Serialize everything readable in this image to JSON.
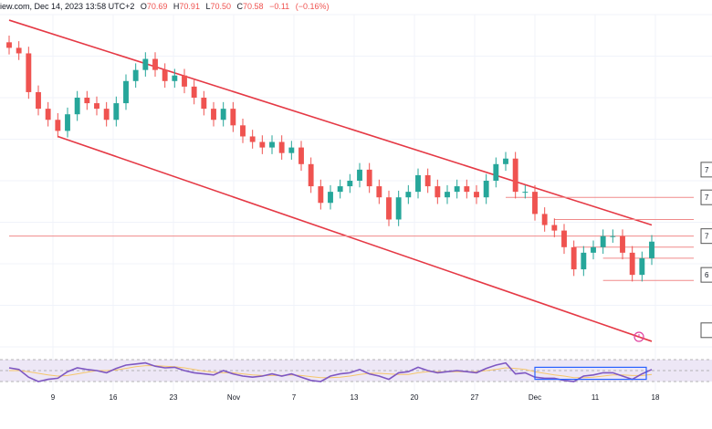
{
  "header": {
    "source": "iew.com, Dec 14, 2023 13:58 UTC+2",
    "open_label": "O",
    "open": "70.69",
    "high_label": "H",
    "high": "70.91",
    "low_label": "L",
    "low": "70.50",
    "close_label": "C",
    "close": "70.58",
    "change": "−0.11",
    "change_pct": "(−0.16%)"
  },
  "price_labels": [
    "7",
    "7",
    "7",
    "6",
    ""
  ],
  "colors": {
    "up": "#26a69a",
    "down": "#ef5350",
    "channel": "#e53945",
    "level": "#f08a8a",
    "rsi": "#7e57c2",
    "rsi_ma": "#f5c66b",
    "rsi_band": "#ede7f6",
    "box": "#2962ff",
    "grid": "#f0f3fa"
  },
  "chart_data": {
    "type": "candlestick",
    "symbol_interval": "4H",
    "x_ticks": [
      "9",
      "16",
      "23",
      "Nov",
      "7",
      "13",
      "20",
      "27",
      "Dec",
      "11",
      "18"
    ],
    "close_values": [
      71.0,
      70.9,
      70.2,
      69.9,
      69.7,
      69.5,
      69.8,
      70.1,
      70.0,
      69.9,
      69.7,
      70.0,
      70.4,
      70.6,
      70.8,
      70.6,
      70.4,
      70.5,
      70.3,
      70.1,
      69.9,
      69.7,
      69.9,
      69.6,
      69.4,
      69.3,
      69.2,
      69.3,
      69.1,
      69.2,
      68.9,
      68.5,
      68.2,
      68.4,
      68.5,
      68.6,
      68.8,
      68.5,
      68.3,
      67.9,
      68.3,
      68.4,
      68.7,
      68.5,
      68.3,
      68.4,
      68.5,
      68.4,
      68.3,
      68.6,
      68.9,
      69.0,
      68.4,
      68.4,
      68.0,
      67.8,
      67.7,
      67.4,
      67.0,
      67.3,
      67.4,
      67.6,
      67.6,
      67.3,
      66.9,
      67.2,
      67.5
    ],
    "series": [
      {
        "name": "",
        "values": [
          71.0,
          70.9,
          70.2,
          69.9,
          69.7,
          69.5,
          69.8,
          70.1,
          70.0,
          69.9,
          69.7,
          70.0,
          70.4,
          70.6,
          70.8,
          70.6,
          70.4,
          70.5,
          70.3,
          70.1,
          69.9,
          69.7,
          69.9,
          69.6,
          69.4,
          69.3,
          69.2,
          69.3,
          69.1,
          69.2,
          68.9,
          68.5,
          68.2,
          68.4,
          68.5,
          68.6,
          68.8,
          68.5,
          68.3,
          67.9,
          68.3,
          68.4,
          68.7,
          68.5,
          68.3,
          68.4,
          68.5,
          68.4,
          68.3,
          68.6,
          68.9,
          69.0,
          68.4,
          68.4,
          68.0,
          67.8,
          67.7,
          67.4,
          67.0,
          67.3,
          67.4,
          67.6,
          67.6,
          67.3,
          66.9,
          67.2,
          67.5
        ]
      }
    ],
    "ylim": [
      65.6,
      71.6
    ],
    "channel": {
      "upper": [
        {
          "x": 0,
          "y": 71.5
        },
        {
          "x": 66,
          "y": 67.8
        }
      ],
      "lower": [
        {
          "x": 5,
          "y": 69.4
        },
        {
          "x": 66,
          "y": 65.7
        }
      ]
    },
    "horizontal_levels": [
      68.3,
      67.9,
      67.4,
      67.2,
      66.8,
      67.6
    ],
    "rsi": {
      "values": [
        55,
        52,
        38,
        30,
        34,
        36,
        48,
        55,
        52,
        50,
        46,
        54,
        60,
        62,
        64,
        58,
        55,
        56,
        50,
        46,
        44,
        42,
        50,
        44,
        40,
        38,
        40,
        44,
        40,
        44,
        38,
        32,
        30,
        40,
        44,
        46,
        52,
        44,
        40,
        34,
        46,
        48,
        56,
        50,
        46,
        48,
        50,
        48,
        46,
        54,
        60,
        64,
        44,
        46,
        38,
        36,
        36,
        32,
        30,
        40,
        42,
        46,
        46,
        40,
        34,
        44,
        52
      ],
      "ma": [
        50,
        50,
        48,
        45,
        42,
        40,
        41,
        44,
        47,
        50,
        50,
        51,
        54,
        57,
        59,
        59,
        58,
        57,
        55,
        52,
        49,
        47,
        46,
        46,
        44,
        42,
        41,
        41,
        41,
        42,
        41,
        39,
        37,
        37,
        38,
        40,
        43,
        45,
        45,
        44,
        43,
        43,
        46,
        48,
        48,
        48,
        48,
        48,
        48,
        50,
        52,
        55,
        54,
        52,
        48,
        45,
        42,
        40,
        37,
        37,
        38,
        40,
        42,
        42,
        41,
        41,
        43
      ],
      "ylim": [
        20,
        80
      ],
      "bands": [
        70,
        50,
        30
      ]
    },
    "grid": true
  }
}
